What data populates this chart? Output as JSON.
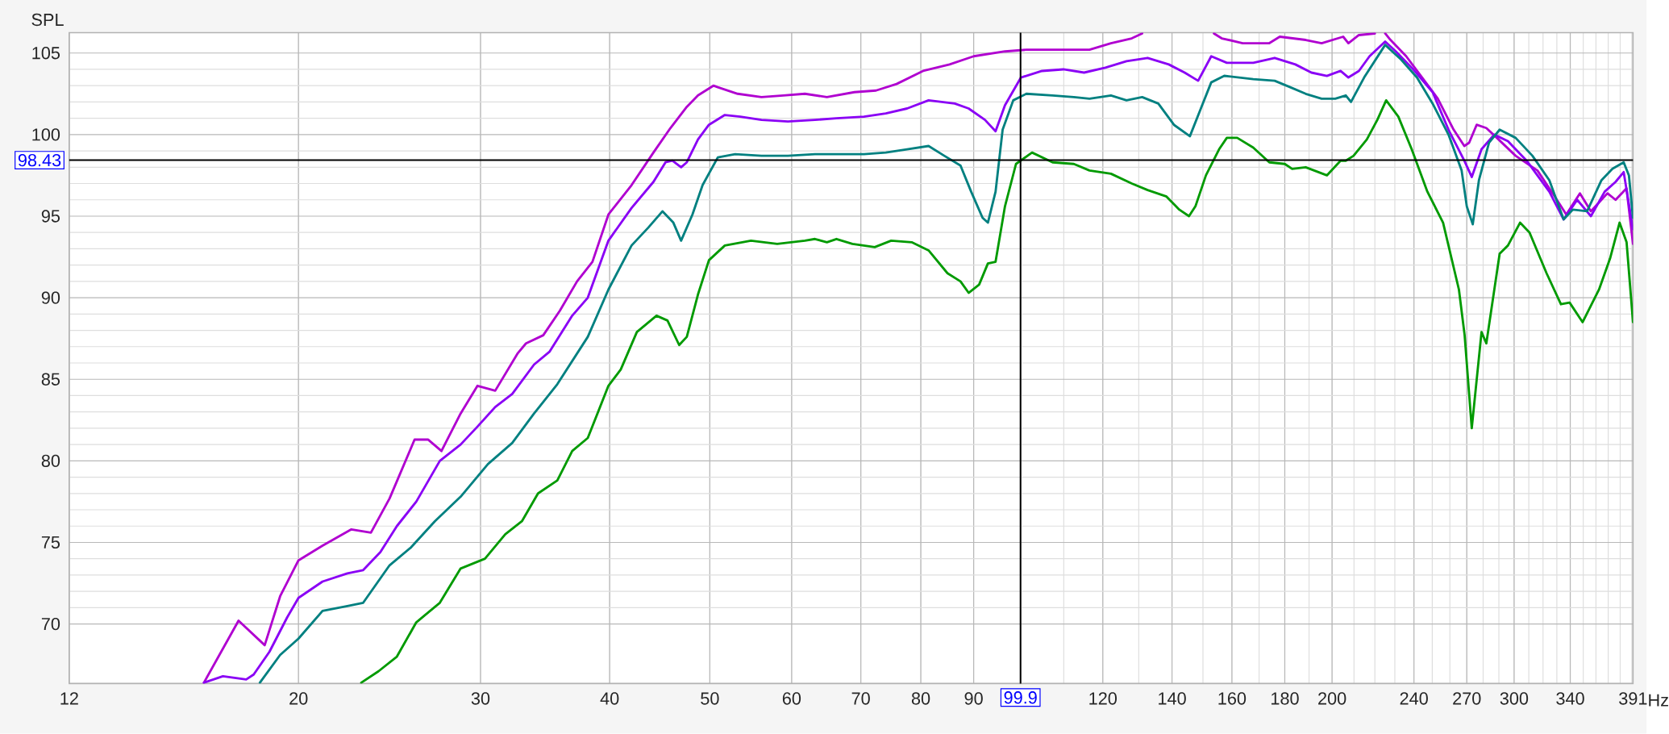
{
  "chart_data": {
    "type": "line",
    "xlabel": "Hz",
    "ylabel": "SPL",
    "log": "x",
    "grid": true,
    "xlim": [
      12,
      391
    ],
    "ylim": [
      66.35,
      106.25
    ],
    "xticks": [
      12,
      20,
      30,
      40,
      50,
      60,
      70,
      80,
      90,
      {
        "value": 100,
        "label": null
      },
      120,
      140,
      160,
      180,
      200,
      240,
      270,
      300,
      340,
      391
    ],
    "yticks": [
      70,
      75,
      80,
      85,
      90,
      95,
      100,
      105
    ],
    "ref_lines": [
      {
        "axis": "x",
        "value": 99.9,
        "label": "99.9",
        "color": "#000000"
      },
      {
        "axis": "y",
        "value": 98.43,
        "label": "98.43",
        "color": "#000000"
      }
    ],
    "series": [
      {
        "color": "#b000d0",
        "x": [
          16.2,
          17.5,
          18.55,
          19.2,
          20,
          21.1,
          22.5,
          23.5,
          24.5,
          25.9,
          26.7,
          27.5,
          28.7,
          29.8,
          31.0,
          32.6,
          33.2,
          34.5,
          35.8,
          37.2,
          38.5,
          39.9,
          42.0,
          44.1,
          45.8,
          47.5,
          48.7,
          50.4,
          50.9,
          53.2,
          56.1,
          58.9,
          61.8,
          64.9,
          69.0,
          72.4,
          75.8,
          80.4,
          85.3,
          90,
          96.5,
          101.2,
          108.6,
          116.5,
          122.2,
          128.0,
          131.0,
          140,
          153.7,
          156.4,
          163.9,
          173.9,
          178.0,
          188.6,
          195.4,
          205,
          207.4,
          212.3,
          220,
          222.5,
          225.1,
          227.8,
          235.9,
          244.4,
          253.1,
          262.2,
          268.5,
          271.4,
          276,
          282,
          288.7,
          301,
          316,
          328.5,
          337,
          347.4,
          356,
          369.4,
          376.1,
          385.4,
          391
        ],
        "values": [
          66.4,
          70.2,
          68.7,
          71.7,
          73.9,
          74.8,
          75.8,
          75.6,
          77.7,
          81.3,
          81.3,
          80.6,
          82.9,
          84.6,
          84.3,
          86.6,
          87.2,
          87.7,
          89.2,
          91.0,
          92.2,
          95.1,
          96.9,
          98.9,
          100.4,
          101.7,
          102.4,
          103.0,
          102.9,
          102.5,
          102.3,
          102.4,
          102.5,
          102.3,
          102.6,
          102.7,
          103.1,
          103.9,
          104.3,
          104.8,
          105.1,
          105.2,
          105.2,
          105.2,
          105.6,
          105.9,
          106.2,
          null,
          106.2,
          105.9,
          105.6,
          105.6,
          106.0,
          105.8,
          105.6,
          106.0,
          105.6,
          106.1,
          106.2,
          null,
          106.2,
          105.8,
          104.8,
          103.5,
          102.2,
          100.3,
          99.3,
          99.5,
          100.6,
          100.4,
          99.8,
          98.7,
          97.8,
          96.2,
          95.1,
          96.4,
          95.3,
          96.4,
          96.0,
          96.7,
          93.3
        ]
      },
      {
        "color": "#8a00f5",
        "x": [
          16.2,
          16.9,
          17.8,
          18.1,
          18.75,
          19.5,
          20,
          21.1,
          22.3,
          23.1,
          24.0,
          24.9,
          26.0,
          27.4,
          28.7,
          29.8,
          31.0,
          32.2,
          33.8,
          35.0,
          36.8,
          38.1,
          39.9,
          42.0,
          44.1,
          45.3,
          46.0,
          46.9,
          47.5,
          48.7,
          49.9,
          51.7,
          53.5,
          56.1,
          59.5,
          63.2,
          66.3,
          70.5,
          74.0,
          77.6,
          81.4,
          86.3,
          89.0,
          92.3,
          94.5,
          96.5,
          100,
          104.8,
          109.9,
          115.1,
          120.7,
          126.5,
          132.6,
          139.0,
          144.0,
          148.4,
          152.8,
          158.2,
          167.8,
          176.0,
          184.3,
          191,
          197.7,
          203.8,
          207.4,
          212.3,
          217.4,
          225.1,
          230.5,
          238.8,
          250.2,
          259.2,
          268.5,
          273,
          279,
          287,
          295.9,
          308.5,
          324.5,
          335,
          345.3,
          356,
          367.1,
          376.1,
          383,
          391
        ],
        "values": [
          66.4,
          66.8,
          66.6,
          66.9,
          68.3,
          70.4,
          71.6,
          72.6,
          73.1,
          73.3,
          74.4,
          76.0,
          77.5,
          80.0,
          81.0,
          82.1,
          83.3,
          84.1,
          85.9,
          86.7,
          88.9,
          90.0,
          93.5,
          95.5,
          97.1,
          98.3,
          98.4,
          98.0,
          98.3,
          99.7,
          100.6,
          101.2,
          101.1,
          100.9,
          100.8,
          100.9,
          101.0,
          101.1,
          101.3,
          101.6,
          102.1,
          101.9,
          101.6,
          100.9,
          100.2,
          101.8,
          103.5,
          103.9,
          104.0,
          103.8,
          104.1,
          104.5,
          104.7,
          104.3,
          103.8,
          103.3,
          104.8,
          104.4,
          104.4,
          104.7,
          104.3,
          103.8,
          103.6,
          103.9,
          103.5,
          103.9,
          104.8,
          105.7,
          105.1,
          104.1,
          102.6,
          100.3,
          98.4,
          97.4,
          99.1,
          100.0,
          99.6,
          98.4,
          96.5,
          94.8,
          96.0,
          95.0,
          96.5,
          97.1,
          97.7,
          94.2
        ]
      },
      {
        "color": "#008080",
        "x": [
          18.35,
          19.2,
          20,
          21.1,
          22.3,
          23.1,
          24.5,
          25.7,
          27.1,
          28.7,
          30.5,
          32.2,
          33.8,
          35.6,
          38.1,
          39.9,
          42.0,
          43.6,
          45.0,
          46.1,
          46.9,
          48.1,
          49.2,
          50.9,
          52.9,
          56.1,
          59.5,
          63.2,
          66.3,
          70.5,
          74.0,
          77.6,
          81.4,
          84.3,
          87.4,
          89.5,
          91.8,
          92.9,
          94.5,
          96.0,
          98.3,
          101.2,
          107.3,
          112.5,
          116.5,
          122.2,
          126.5,
          131.0,
          135.8,
          140.6,
          145.7,
          149.3,
          152.8,
          157.3,
          167.8,
          176.0,
          182.2,
          188.6,
          195.4,
          201.4,
          206.2,
          208.6,
          214.8,
          225.1,
          233.2,
          241.6,
          250.2,
          259.2,
          266.9,
          270,
          273.6,
          277.4,
          283.7,
          290.5,
          301,
          312.5,
          324.5,
          335,
          342,
          353,
          364.5,
          373.5,
          383,
          387.5,
          391
        ],
        "values": [
          66.4,
          68.1,
          69.1,
          70.8,
          71.1,
          71.3,
          73.6,
          74.7,
          76.3,
          77.8,
          79.8,
          81.1,
          82.9,
          84.7,
          87.6,
          90.5,
          93.2,
          94.3,
          95.3,
          94.6,
          93.5,
          95.1,
          96.9,
          98.6,
          98.8,
          98.7,
          98.7,
          98.8,
          98.8,
          98.8,
          98.9,
          99.1,
          99.3,
          98.7,
          98.1,
          96.5,
          94.9,
          94.6,
          96.5,
          100.3,
          102.1,
          102.5,
          102.4,
          102.3,
          102.2,
          102.4,
          102.1,
          102.3,
          101.9,
          100.6,
          99.9,
          101.6,
          103.2,
          103.6,
          103.4,
          103.3,
          102.9,
          102.5,
          102.2,
          102.2,
          102.4,
          102.0,
          103.5,
          105.5,
          104.6,
          103.5,
          101.9,
          100.0,
          97.8,
          95.6,
          94.5,
          97.2,
          99.5,
          100.3,
          99.8,
          98.7,
          97.2,
          94.8,
          95.4,
          95.3,
          97.2,
          97.9,
          98.3,
          97.5,
          94.9
        ]
      },
      {
        "color": "#009a00",
        "x": [
          23.0,
          23.9,
          24.9,
          26.0,
          27.4,
          28.7,
          30.3,
          31.7,
          32.9,
          34.1,
          35.6,
          36.8,
          38.1,
          39.9,
          41.0,
          42.5,
          44.4,
          45.5,
          46.7,
          47.5,
          48.7,
          49.9,
          51.7,
          54.8,
          58.1,
          61.8,
          63.2,
          64.9,
          66.3,
          68.7,
          72.2,
          74.9,
          78.4,
          81.4,
          84.9,
          87.4,
          89.0,
          91.1,
          92.9,
          94.5,
          96.5,
          98.9,
          102.5,
          107.3,
          112.5,
          116.5,
          122.2,
          128.0,
          132.6,
          138.3,
          142.3,
          145.4,
          147.5,
          151.0,
          155.5,
          158.2,
          161.9,
          167.8,
          173.9,
          180,
          183,
          188.6,
          197.7,
          203.8,
          206.2,
          209.8,
          216.1,
          221.2,
          225.6,
          231.8,
          238.8,
          247.3,
          256.1,
          265.3,
          268.7,
          273,
          279,
          282,
          290.5,
          295.9,
          304,
          310.5,
          322.5,
          333,
          339.5,
          349.5,
          362.5,
          371.5,
          379.5,
          385.5,
          391
        ],
        "values": [
          66.4,
          67.1,
          68.0,
          70.1,
          71.3,
          73.4,
          74.0,
          75.5,
          76.3,
          78.0,
          78.8,
          80.6,
          81.4,
          84.6,
          85.6,
          87.9,
          88.9,
          88.6,
          87.1,
          87.6,
          90.2,
          92.3,
          93.2,
          93.5,
          93.3,
          93.5,
          93.6,
          93.4,
          93.6,
          93.3,
          93.1,
          93.5,
          93.4,
          92.9,
          91.5,
          91.0,
          90.3,
          90.8,
          92.1,
          92.2,
          95.6,
          98.2,
          98.9,
          98.3,
          98.2,
          97.8,
          97.6,
          97.0,
          96.6,
          96.2,
          95.4,
          95.0,
          95.6,
          97.5,
          99.1,
          99.8,
          99.8,
          99.2,
          98.3,
          98.2,
          97.9,
          98.0,
          97.5,
          98.4,
          98.4,
          98.7,
          99.7,
          100.9,
          102.1,
          101.1,
          99.1,
          96.5,
          94.6,
          90.5,
          87.7,
          82.0,
          87.9,
          87.2,
          92.7,
          93.2,
          94.6,
          94.0,
          91.5,
          89.6,
          89.7,
          88.5,
          90.5,
          92.4,
          94.6,
          93.4,
          88.5
        ]
      }
    ]
  }
}
